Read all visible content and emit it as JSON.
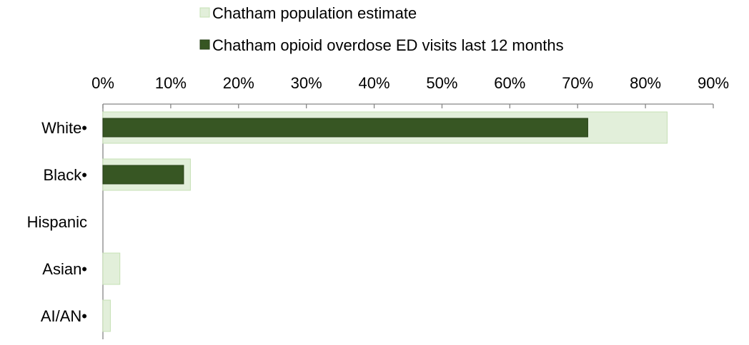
{
  "chart_data": {
    "type": "bar",
    "orientation": "horizontal",
    "categories": [
      "White•",
      "Black•",
      "Hispanic",
      "Asian•",
      "AI/AN•"
    ],
    "series": [
      {
        "name": "Chatham population estimate",
        "color": "#e2efda",
        "border_color": "#c5e0b4",
        "values": [
          83.2,
          12.9,
          0,
          2.5,
          1.1
        ]
      },
      {
        "name": "Chatham opioid overdose ED visits last 12 months",
        "color": "#375623",
        "border_color": "#2a4219",
        "values": [
          71.5,
          11.9,
          0,
          0,
          0
        ]
      }
    ],
    "xlim": [
      0,
      90
    ],
    "x_ticks": [
      "0%",
      "10%",
      "20%",
      "30%",
      "40%",
      "50%",
      "60%",
      "70%",
      "80%",
      "90%"
    ],
    "x_tick_values": [
      0,
      10,
      20,
      30,
      40,
      50,
      60,
      70,
      80,
      90
    ],
    "axis_position": "top",
    "grid": false,
    "legend_position": "top",
    "xlabel": "",
    "ylabel": "",
    "title": ""
  }
}
